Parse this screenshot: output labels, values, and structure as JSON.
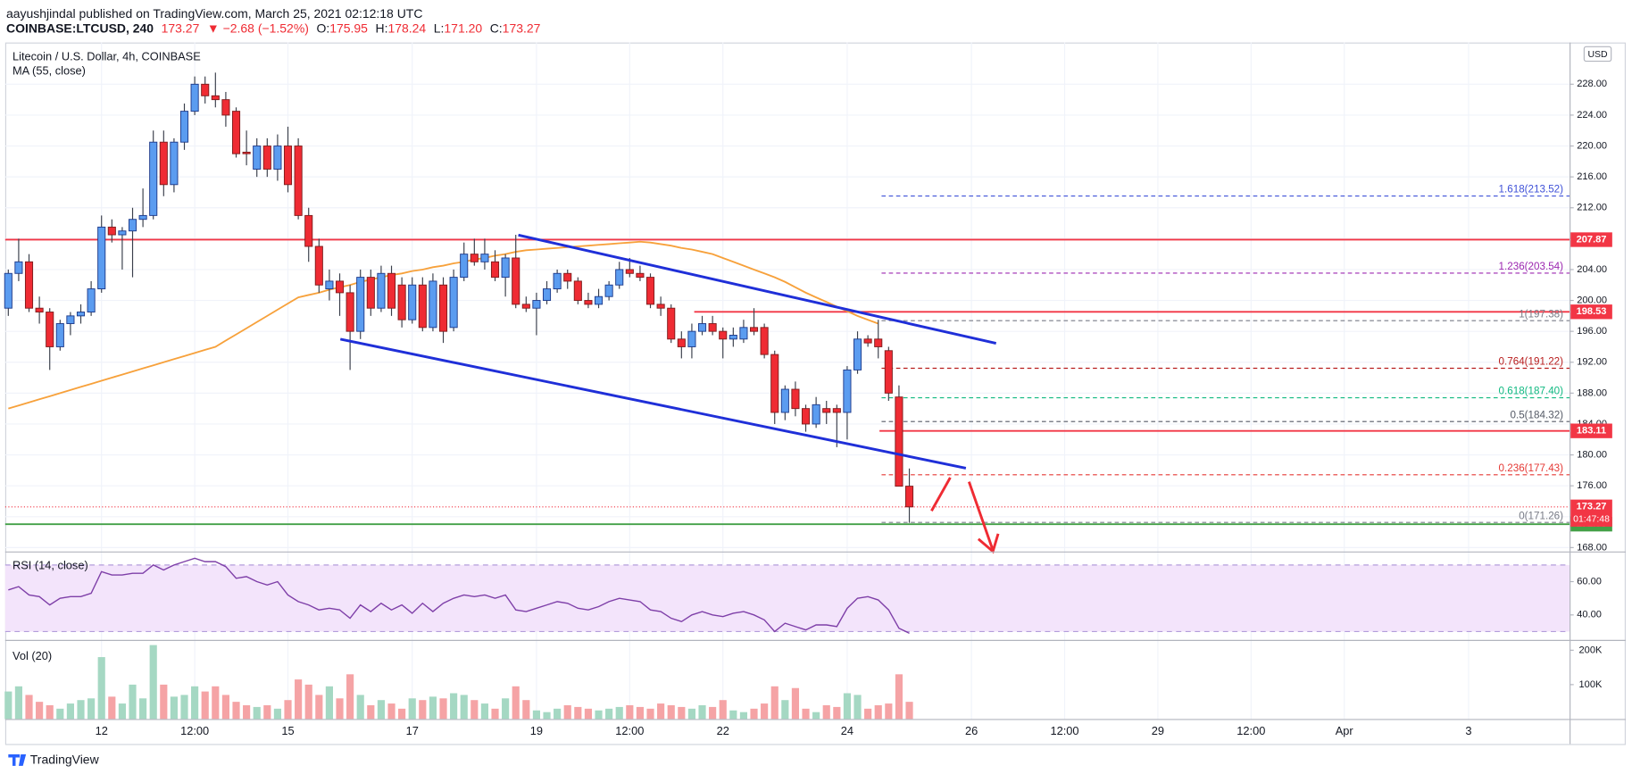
{
  "header": {
    "publisher": "aayushjindal published on TradingView.com, March 25, 2021 02:12:18 UTC",
    "symbol": "COINBASE:LTCUSD, 240",
    "last": "173.27",
    "change": "▼ −2.68 (−1.52%)",
    "ohlc": [
      {
        "label": "O:",
        "value": "175.95"
      },
      {
        "label": "H:",
        "value": "178.24"
      },
      {
        "label": "L:",
        "value": "171.20"
      },
      {
        "label": "C:",
        "value": "173.27"
      }
    ]
  },
  "footer": {
    "brand": "TradingView"
  },
  "chart_data": {
    "type": "candlestick",
    "title": "Litecoin / U.S. Dollar, 4h, COINBASE",
    "currency": "USD",
    "up_color": "#5b9cf0",
    "down_color": "#ef2b33",
    "grid": true,
    "xlim": [
      -0.3,
      150.75
    ],
    "xticks": [
      {
        "value": 9,
        "label": "12"
      },
      {
        "value": 18,
        "label": "12:00"
      },
      {
        "value": 27,
        "label": "15"
      },
      {
        "value": 39,
        "label": "17"
      },
      {
        "value": 51,
        "label": "19"
      },
      {
        "value": 60,
        "label": "12:00"
      },
      {
        "value": 69,
        "label": "22"
      },
      {
        "value": 81,
        "label": "24"
      },
      {
        "value": 93,
        "label": "26"
      },
      {
        "value": 102,
        "label": "12:00"
      },
      {
        "value": 111,
        "label": "29"
      },
      {
        "value": 120,
        "label": "12:00"
      },
      {
        "value": 129,
        "label": "Apr"
      },
      {
        "value": 141,
        "label": "3"
      }
    ],
    "ylim": [
      167.5,
      233.4
    ],
    "yticks": [
      {
        "value": 168,
        "label": "168.00"
      },
      {
        "value": 172,
        "label": "172.00"
      },
      {
        "value": 176,
        "label": "176.00"
      },
      {
        "value": 180,
        "label": "180.00"
      },
      {
        "value": 184,
        "label": "184.00"
      },
      {
        "value": 188,
        "label": "188.00"
      },
      {
        "value": 192,
        "label": "192.00"
      },
      {
        "value": 196,
        "label": "196.00"
      },
      {
        "value": 200,
        "label": "200.00"
      },
      {
        "value": 204,
        "label": "204.00"
      },
      {
        "value": 208,
        "label": "208.00"
      },
      {
        "value": 212,
        "label": "212.00"
      },
      {
        "value": 216,
        "label": "216.00"
      },
      {
        "value": 220,
        "label": "220.00"
      },
      {
        "value": 224,
        "label": "224.00"
      },
      {
        "value": 228,
        "label": "228.00"
      }
    ],
    "ohlc": [
      [
        199,
        204,
        198,
        203.5
      ],
      [
        203.5,
        208,
        202.5,
        205
      ],
      [
        205,
        206,
        198.5,
        199
      ],
      [
        199,
        200.5,
        197,
        198.5
      ],
      [
        198.5,
        199,
        191,
        194
      ],
      [
        194,
        197.5,
        193.5,
        197
      ],
      [
        197,
        198.5,
        195.5,
        198
      ],
      [
        198,
        199.5,
        197,
        198.5
      ],
      [
        198.5,
        202.5,
        198,
        201.5
      ],
      [
        201.5,
        211,
        201,
        209.5
      ],
      [
        209.5,
        210.5,
        207.5,
        208.5
      ],
      [
        208.5,
        209.5,
        204,
        209
      ],
      [
        209,
        212,
        203,
        210.5
      ],
      [
        210.5,
        214.5,
        209.5,
        211
      ],
      [
        211,
        222,
        210.5,
        220.5
      ],
      [
        220.5,
        222,
        213.5,
        215
      ],
      [
        215,
        221,
        214,
        220.5
      ],
      [
        220.5,
        225.5,
        219.5,
        224.5
      ],
      [
        224.5,
        229,
        224,
        228
      ],
      [
        228,
        229,
        225.5,
        226.5
      ],
      [
        226.5,
        229.5,
        225,
        226
      ],
      [
        226,
        227,
        222.5,
        224
      ],
      [
        224.5,
        225,
        218.5,
        219
      ],
      [
        219.2,
        222,
        217.5,
        219
      ],
      [
        217,
        221,
        216,
        220
      ],
      [
        220,
        221,
        216,
        217
      ],
      [
        217,
        221.5,
        215.5,
        220
      ],
      [
        220,
        222.5,
        214,
        215
      ],
      [
        220,
        221,
        210.5,
        211
      ],
      [
        211,
        212,
        205,
        207
      ],
      [
        207,
        208,
        201,
        202
      ],
      [
        201.5,
        204,
        200,
        202.5
      ],
      [
        202.5,
        203.5,
        198,
        201
      ],
      [
        201,
        202,
        191,
        196
      ],
      [
        196,
        204,
        195,
        203
      ],
      [
        203,
        204,
        198,
        199
      ],
      [
        199,
        204.5,
        198.5,
        203.5
      ],
      [
        203.5,
        204.5,
        198,
        199
      ],
      [
        202,
        203,
        196.5,
        197.5
      ],
      [
        197.5,
        203,
        197,
        202
      ],
      [
        202,
        203,
        196,
        196.5
      ],
      [
        196.5,
        203.5,
        196,
        202.5
      ],
      [
        202,
        203,
        194.5,
        196
      ],
      [
        196.5,
        204,
        196,
        203
      ],
      [
        203,
        207.5,
        202.5,
        206
      ],
      [
        206,
        208,
        204.5,
        205
      ],
      [
        205,
        208,
        204,
        206
      ],
      [
        205,
        206.5,
        202.5,
        203
      ],
      [
        203,
        206,
        200.5,
        205.5
      ],
      [
        205.5,
        208.5,
        199,
        199.5
      ],
      [
        199.5,
        200.5,
        198.5,
        199
      ],
      [
        199,
        201,
        195.5,
        200
      ],
      [
        200,
        202.5,
        199.5,
        201.5
      ],
      [
        201.5,
        204,
        201,
        203.5
      ],
      [
        203.5,
        204,
        201.5,
        202.5
      ],
      [
        202.5,
        203,
        199.5,
        200
      ],
      [
        200,
        201,
        199,
        199.5
      ],
      [
        199.5,
        201.5,
        199,
        200.5
      ],
      [
        200.5,
        202.5,
        200,
        202
      ],
      [
        202,
        205,
        201.5,
        204
      ],
      [
        204,
        205.5,
        203,
        203.5
      ],
      [
        203.5,
        204.5,
        202.5,
        203
      ],
      [
        203,
        203.5,
        199,
        199.5
      ],
      [
        199.5,
        200.5,
        198,
        199
      ],
      [
        199,
        199.5,
        194.5,
        195
      ],
      [
        195,
        196,
        192.5,
        194
      ],
      [
        194,
        197,
        192.5,
        196
      ],
      [
        196,
        198,
        195.5,
        197
      ],
      [
        197,
        198,
        195.5,
        196
      ],
      [
        196,
        196.5,
        192.5,
        195
      ],
      [
        195,
        196.5,
        194,
        195.5
      ],
      [
        195,
        197.5,
        194.5,
        196.5
      ],
      [
        196.5,
        199,
        195.5,
        196
      ],
      [
        196.5,
        197,
        192.5,
        193
      ],
      [
        193,
        193.5,
        184,
        185.5
      ],
      [
        185.5,
        189,
        184.5,
        188.5
      ],
      [
        188.5,
        189.5,
        185,
        186
      ],
      [
        186,
        186.5,
        183,
        184
      ],
      [
        184,
        187.5,
        183.5,
        186.5
      ],
      [
        186,
        187,
        184,
        185.5
      ],
      [
        186,
        186.5,
        181,
        185.5
      ],
      [
        185.5,
        191.5,
        182,
        191
      ],
      [
        191,
        196,
        190.5,
        195
      ],
      [
        195,
        195.5,
        194,
        194.5
      ],
      [
        195,
        197.5,
        192.5,
        194
      ],
      [
        193.5,
        194,
        187,
        188
      ],
      [
        187.5,
        189,
        176,
        175.95
      ],
      [
        175.95,
        178.24,
        171.2,
        173.27
      ]
    ],
    "ma": {
      "label": "MA (55, close)",
      "color": "#f7a13b",
      "values": [
        186,
        186.4,
        186.8,
        187.2,
        187.6,
        188,
        188.4,
        188.8,
        189.2,
        189.6,
        190,
        190.4,
        190.8,
        191.2,
        191.6,
        192,
        192.4,
        192.8,
        193.2,
        193.6,
        194,
        194.8,
        195.6,
        196.4,
        197.2,
        198,
        198.8,
        199.6,
        200.4,
        200.7,
        201,
        201.4,
        201.7,
        202,
        202.4,
        202.7,
        203,
        203.3,
        203.5,
        203.8,
        204,
        204.3,
        204.5,
        204.8,
        205,
        205.3,
        205.5,
        205.8,
        206,
        206.3,
        206.5,
        206.6,
        206.7,
        206.8,
        206.9,
        207,
        207.1,
        207.2,
        207.3,
        207.4,
        207.5,
        207.6,
        207.5,
        207.3,
        207.1,
        206.8,
        206.6,
        206.3,
        206,
        205.5,
        205,
        204.5,
        204,
        203.5,
        203,
        202.4,
        201.7,
        201,
        200.4,
        199.8,
        199.2,
        198.6,
        198,
        197.5,
        197,
        null,
        null,
        null
      ]
    },
    "hlines": [
      {
        "price": 207.87,
        "color": "#f23645"
      },
      {
        "price": 198.53,
        "color": "#f23645"
      },
      {
        "price": 183.11,
        "color": "#f23645"
      },
      {
        "price": 171.03,
        "color": "#43a047"
      }
    ],
    "last_price": {
      "price": 173.27,
      "countdown": "01:47:48",
      "color": "#f23645"
    },
    "fib_levels": [
      {
        "label": "1.618(213.52)",
        "price": 213.52,
        "color": "#3f51d8"
      },
      {
        "label": "1.236(203.54)",
        "price": 203.54,
        "color": "#9c27b0"
      },
      {
        "label": "1(197.38)",
        "price": 197.38,
        "color": "#787b86"
      },
      {
        "label": "0.764(191.22)",
        "price": 191.22,
        "color": "#b71c1c"
      },
      {
        "label": "0.618(187.40)",
        "price": 187.4,
        "color": "#10b981"
      },
      {
        "label": "0.5(184.32)",
        "price": 184.32,
        "color": "#555a66"
      },
      {
        "label": "0.236(177.43)",
        "price": 177.43,
        "color": "#e53935"
      },
      {
        "label": "0(171.26)",
        "price": 171.26,
        "color": "#787b86"
      }
    ],
    "rsi": {
      "label": "RSI (14, close)",
      "color": "#7e3fa8",
      "band": [
        30,
        70
      ],
      "ylim": [
        25,
        77.5
      ],
      "yticks": [
        {
          "value": 40,
          "label": "40.00"
        },
        {
          "value": 60,
          "label": "60.00"
        }
      ],
      "values": [
        55,
        57,
        52,
        51,
        46,
        50,
        51,
        51,
        53,
        66,
        64,
        64,
        65,
        65,
        70,
        67,
        70,
        72,
        74,
        72,
        72,
        69,
        62,
        63,
        60,
        58,
        60,
        52,
        48,
        46,
        43,
        44,
        43,
        38,
        46,
        42,
        47,
        43,
        46,
        41,
        47,
        42,
        47,
        50,
        52,
        51,
        52,
        50,
        52,
        43,
        42,
        44,
        46,
        48,
        47,
        44,
        43,
        45,
        48,
        50,
        49,
        48,
        43,
        42,
        38,
        36,
        40,
        42,
        40,
        39,
        41,
        42,
        40,
        37,
        30,
        35,
        33,
        31,
        34,
        34,
        33,
        44,
        50,
        51,
        49,
        43,
        32,
        29
      ]
    },
    "volume": {
      "label": "Vol (20)",
      "up_color": "#a5d8c3",
      "down_color": "#f5a3a5",
      "ylim": [
        0,
        227000
      ],
      "yticks": [
        {
          "value": 100000,
          "label": "100K"
        },
        {
          "value": 200000,
          "label": "200K"
        }
      ],
      "values": [
        80000,
        95000,
        70000,
        50000,
        40000,
        30000,
        45000,
        55000,
        60000,
        180000,
        65000,
        45000,
        100000,
        60000,
        215000,
        100000,
        65000,
        70000,
        95000,
        80000,
        95000,
        70000,
        50000,
        40000,
        35000,
        40000,
        30000,
        55000,
        115000,
        100000,
        70000,
        95000,
        60000,
        130000,
        70000,
        40000,
        55000,
        45000,
        30000,
        60000,
        55000,
        65000,
        60000,
        75000,
        70000,
        55000,
        45000,
        30000,
        60000,
        95000,
        55000,
        25000,
        20000,
        30000,
        40000,
        35000,
        30000,
        25000,
        30000,
        35000,
        40000,
        35000,
        30000,
        45000,
        40000,
        35000,
        30000,
        40000,
        35000,
        55000,
        25000,
        20000,
        30000,
        45000,
        95000,
        55000,
        90000,
        30000,
        20000,
        40000,
        35000,
        75000,
        70000,
        30000,
        40000,
        45000,
        130000,
        50000
      ]
    }
  }
}
